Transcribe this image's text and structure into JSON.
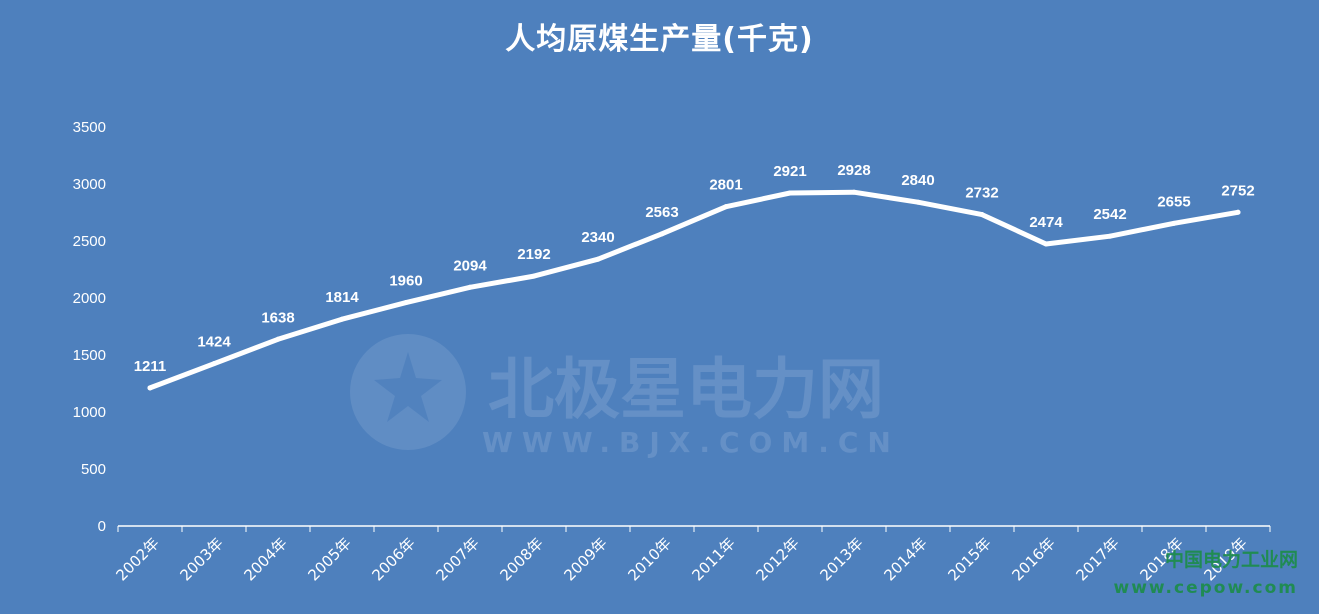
{
  "chart_data": {
    "type": "line",
    "title": "人均原煤生产量(千克)",
    "categories": [
      "2002年",
      "2003年",
      "2004年",
      "2005年",
      "2006年",
      "2007年",
      "2008年",
      "2009年",
      "2010年",
      "2011年",
      "2012年",
      "2013年",
      "2014年",
      "2015年",
      "2016年",
      "2017年",
      "2018年",
      "2019年"
    ],
    "series": [
      {
        "values": [
          1211,
          1424,
          1638,
          1814,
          1960,
          2094,
          2192,
          2340,
          2563,
          2801,
          2921,
          2928,
          2840,
          2732,
          2474,
          2542,
          2655,
          2752
        ]
      }
    ],
    "ylim": [
      0,
      3500
    ],
    "yticks": [
      0,
      500,
      1000,
      1500,
      2000,
      2500,
      3000,
      3500
    ],
    "xlabel": "",
    "ylabel": "",
    "grid": false,
    "drop_lines": true,
    "data_labels": true
  },
  "colors": {
    "background": "#4e80bd",
    "line": "#ffffff",
    "text": "#ffffff",
    "watermark": "#6f98ca",
    "watermark2": "#1e8c4e"
  },
  "watermark": {
    "main_text": "北极星电力网",
    "sub_text": "WWW.BJX.COM.CN",
    "icon": "star-logo-icon"
  },
  "watermark2": {
    "main_text": "中国电力工业网",
    "sub_text": "www.cepow.com"
  }
}
